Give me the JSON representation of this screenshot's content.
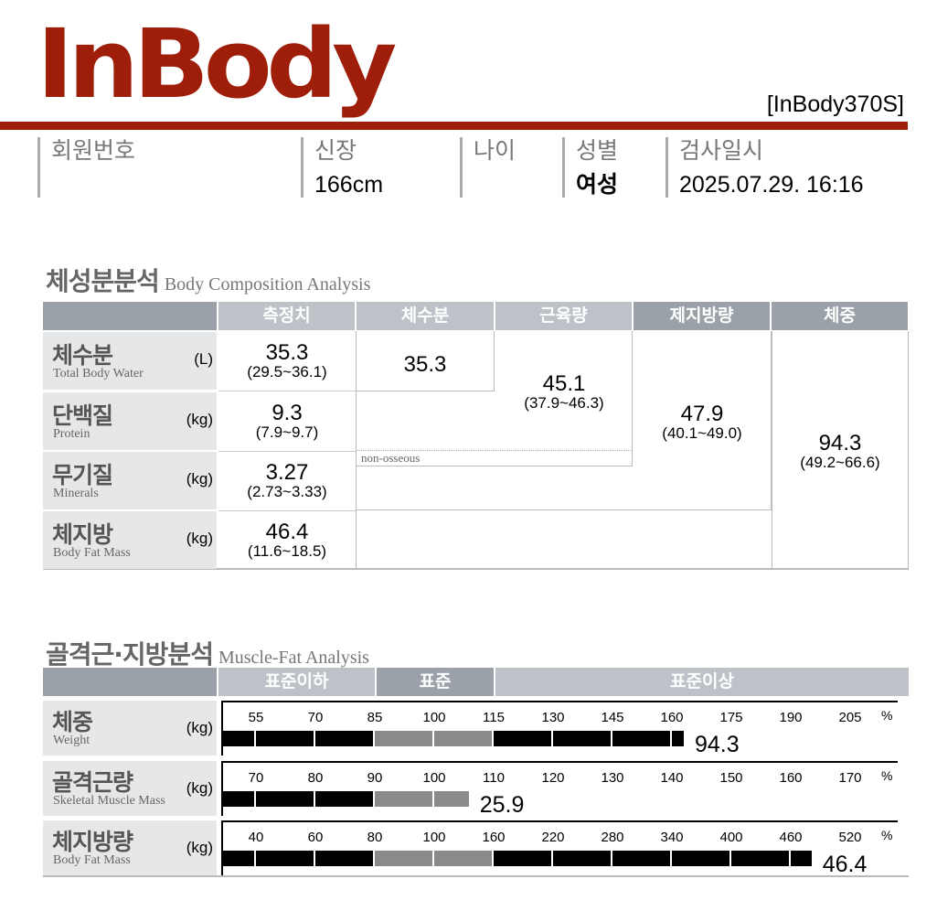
{
  "header": {
    "logo": "InBody",
    "model": "[InBody370S]",
    "colors": {
      "brand": "#9e1e0a"
    }
  },
  "info": [
    {
      "label": "회원번호",
      "value": ""
    },
    {
      "label": "신장",
      "value": "166cm"
    },
    {
      "label": "나이",
      "value": ""
    },
    {
      "label": "성별",
      "value": "여성"
    },
    {
      "label": "검사일시",
      "value": "2025.07.29. 16:16"
    }
  ],
  "bca": {
    "title_ko": "체성분분석",
    "title_en": "Body Composition Analysis",
    "headers": [
      "측정치",
      "체수분",
      "근육량",
      "제지방량",
      "체중"
    ],
    "rows": [
      {
        "ko": "체수분",
        "en": "Total Body Water",
        "unit": "(L)",
        "value": "35.3",
        "range": "(29.5~36.1)"
      },
      {
        "ko": "단백질",
        "en": "Protein",
        "unit": "(kg)",
        "value": "9.3",
        "range": "(7.9~9.7)"
      },
      {
        "ko": "무기질",
        "en": "Minerals",
        "unit": "(kg)",
        "value": "3.27",
        "range": "(2.73~3.33)"
      },
      {
        "ko": "체지방",
        "en": "Body Fat Mass",
        "unit": "(kg)",
        "value": "46.4",
        "range": "(11.6~18.5)"
      }
    ],
    "water": {
      "value": "35.3"
    },
    "muscle": {
      "value": "45.1",
      "range": "(37.9~46.3)"
    },
    "ffm": {
      "value": "47.9",
      "range": "(40.1~49.0)"
    },
    "weight": {
      "value": "94.3",
      "range": "(49.2~66.6)"
    },
    "non_osseous": "non-osseous"
  },
  "mfa": {
    "title_ko": "골격근·지방분석",
    "title_en": "Muscle-Fat Analysis",
    "headers": [
      "표준이하",
      "표준",
      "표준이상"
    ],
    "pct": "%",
    "rows": [
      {
        "ko": "체중",
        "en": "Weight",
        "unit": "(kg)",
        "ticks": [
          "55",
          "70",
          "85",
          "100",
          "115",
          "130",
          "145",
          "160",
          "175",
          "190",
          "205"
        ],
        "value": "94.3",
        "percent": 163
      },
      {
        "ko": "골격근량",
        "en": "Skeletal Muscle Mass",
        "unit": "(kg)",
        "ticks": [
          "70",
          "80",
          "90",
          "100",
          "110",
          "120",
          "130",
          "140",
          "150",
          "160",
          "170"
        ],
        "value": "25.9",
        "percent": 105.8
      },
      {
        "ko": "체지방량",
        "en": "Body Fat Mass",
        "unit": "(kg)",
        "ticks": [
          "40",
          "60",
          "80",
          "100",
          "160",
          "220",
          "280",
          "340",
          "400",
          "460",
          "520"
        ],
        "value": "46.4",
        "percent": 481
      }
    ],
    "colors": {
      "bar": "#000000",
      "normal": "#8a8a8a"
    }
  }
}
